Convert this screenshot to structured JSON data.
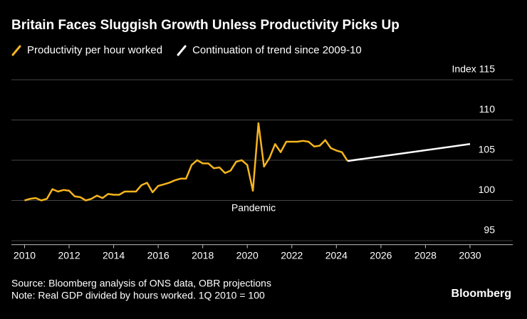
{
  "chart_data": {
    "type": "line",
    "title": "Britain Faces Sluggish Growth Unless Productivity Picks Up",
    "annotation": "Pandemic",
    "source": "Source: Bloomberg analysis of ONS data, OBR projections",
    "note": "Note: Real GDP divided by hours worked. 1Q 2010 = 100",
    "brand": "Bloomberg",
    "xlim": [
      2009.6,
      2031.6
    ],
    "xticks": [
      2010,
      2012,
      2014,
      2016,
      2018,
      2020,
      2022,
      2024,
      2026,
      2028,
      2030
    ],
    "ylim": [
      94.5,
      116.5
    ],
    "yticks": [
      95,
      100,
      105,
      110,
      {
        "value": 115,
        "label": "Index 115"
      }
    ],
    "grid": true,
    "legend": "top-left",
    "series": [
      {
        "name": "Productivity per hour worked",
        "color": "#f6b41e",
        "x": [
          2010,
          2010.25,
          2010.5,
          2010.75,
          2011,
          2011.25,
          2011.5,
          2011.75,
          2012,
          2012.25,
          2012.5,
          2012.75,
          2013,
          2013.25,
          2013.5,
          2013.75,
          2014,
          2014.25,
          2014.5,
          2014.75,
          2015,
          2015.25,
          2015.5,
          2015.75,
          2016,
          2016.25,
          2016.5,
          2016.75,
          2017,
          2017.25,
          2017.5,
          2017.75,
          2018,
          2018.25,
          2018.5,
          2018.75,
          2019,
          2019.25,
          2019.5,
          2019.75,
          2020,
          2020.25,
          2020.5,
          2020.75,
          2021,
          2021.25,
          2021.5,
          2021.75,
          2022,
          2022.25,
          2022.5,
          2022.75,
          2023,
          2023.25,
          2023.5,
          2023.75,
          2024,
          2024.25,
          2024.5
        ],
        "values": [
          100.0,
          100.2,
          100.3,
          100.0,
          100.2,
          101.4,
          101.1,
          101.3,
          101.2,
          100.5,
          100.4,
          100.0,
          100.2,
          100.6,
          100.3,
          100.8,
          100.7,
          100.7,
          101.1,
          101.1,
          101.1,
          101.9,
          102.2,
          101.0,
          101.8,
          102.0,
          102.2,
          102.5,
          102.7,
          102.7,
          104.4,
          105.0,
          104.6,
          104.6,
          104.0,
          104.1,
          103.4,
          103.7,
          104.8,
          105.0,
          104.4,
          101.2,
          109.6,
          104.2,
          105.3,
          107.0,
          106.0,
          107.3,
          107.3,
          107.3,
          107.4,
          107.3,
          106.7,
          106.8,
          107.5,
          106.5,
          106.2,
          106.0,
          104.9
        ]
      },
      {
        "name": "Continuation of trend since 2009-10",
        "color": "#ffffff",
        "x": [
          2024.5,
          2030
        ],
        "values": [
          104.9,
          107.0
        ]
      }
    ]
  }
}
